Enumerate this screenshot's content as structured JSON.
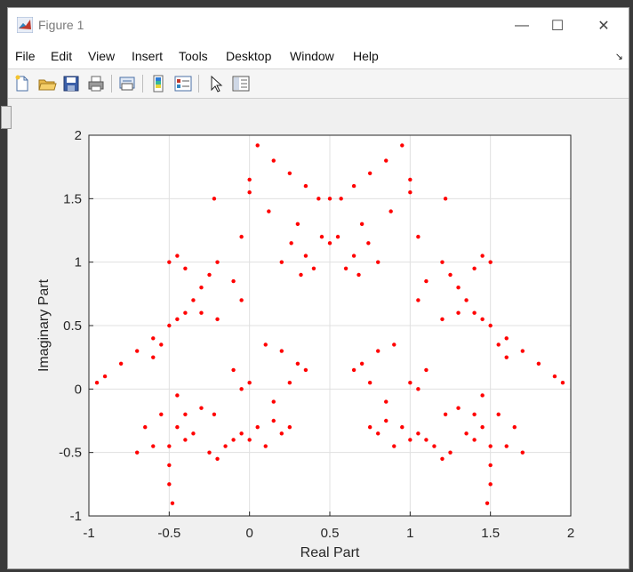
{
  "window": {
    "title": "Figure 1",
    "controls": {
      "minimize": "—",
      "maximize": "☐",
      "close": "✕"
    }
  },
  "menu": [
    "File",
    "Edit",
    "View",
    "Insert",
    "Tools",
    "Desktop",
    "Window",
    "Help"
  ],
  "toolbar": [
    "new-figure-icon",
    "open-file-icon",
    "save-icon",
    "print-icon",
    "link-plot-icon",
    "insert-colorbar-icon",
    "insert-legend-icon",
    "edit-plot-arrow-icon",
    "property-inspector-icon"
  ],
  "colors": {
    "points": "#ff0000",
    "grid": "#e0e0e0",
    "axes_bg": "#ffffff"
  },
  "chart_data": {
    "type": "scatter",
    "title": "",
    "xlabel": "Real Part",
    "ylabel": "Imaginary Part",
    "xlim": [
      -1,
      2
    ],
    "ylim": [
      -1,
      2
    ],
    "xticks": [
      -1,
      -0.5,
      0,
      0.5,
      1,
      1.5,
      2
    ],
    "yticks": [
      -1,
      -0.5,
      0,
      0.5,
      1,
      1.5,
      2
    ],
    "xtick_labels": [
      "-1",
      "-0.5",
      "0",
      "0.5",
      "1",
      "1.5",
      "2"
    ],
    "ytick_labels": [
      "-1",
      "-0.5",
      "0",
      "0.5",
      "1",
      "1.5",
      "2"
    ],
    "grid": true,
    "marker_color": "#ff0000",
    "series": [
      {
        "x": [
          0.5,
          0.43,
          0.57,
          0.35,
          0.65,
          0.25,
          0.75,
          0.15,
          0.85,
          0.05,
          0.95,
          0.0,
          1.0,
          -0.22,
          1.22,
          0.12,
          0.88,
          0.3,
          0.7,
          0.35,
          0.65,
          0.4,
          0.6,
          0.5,
          0.45,
          0.55,
          0.26,
          0.74,
          0.2,
          0.8,
          0.32,
          0.68,
          0.0,
          1.0,
          -0.05,
          1.05
        ],
        "y": [
          1.5,
          1.5,
          1.5,
          1.6,
          1.6,
          1.7,
          1.7,
          1.8,
          1.8,
          1.92,
          1.92,
          1.55,
          1.55,
          1.5,
          1.5,
          1.4,
          1.4,
          1.3,
          1.3,
          1.05,
          1.05,
          0.95,
          0.95,
          1.15,
          1.2,
          1.2,
          1.15,
          1.15,
          1.0,
          1.0,
          0.9,
          0.9,
          1.65,
          1.65,
          1.2,
          1.2
        ]
      },
      {
        "x": [
          -0.95,
          -0.9,
          -0.8,
          -0.7,
          -0.6,
          -0.5,
          -0.45,
          -0.4,
          -0.35,
          -0.3,
          -0.25,
          -0.2,
          -0.1,
          -0.05,
          -0.4,
          -0.45,
          -0.5,
          -0.3,
          -0.2,
          -0.6,
          -0.55,
          1.95,
          1.9,
          1.8,
          1.7,
          1.6,
          1.5,
          1.45,
          1.4,
          1.35,
          1.3,
          1.25,
          1.2,
          1.1,
          1.05,
          1.4,
          1.45,
          1.5,
          1.3,
          1.2,
          1.6,
          1.55
        ],
        "y": [
          0.05,
          0.1,
          0.2,
          0.3,
          0.4,
          0.5,
          0.55,
          0.6,
          0.7,
          0.8,
          0.9,
          1.0,
          0.85,
          0.7,
          0.95,
          1.05,
          1.0,
          0.6,
          0.55,
          0.25,
          0.35,
          0.05,
          0.1,
          0.2,
          0.3,
          0.4,
          0.5,
          0.55,
          0.6,
          0.7,
          0.8,
          0.9,
          1.0,
          0.85,
          0.7,
          0.95,
          1.05,
          1.0,
          0.6,
          0.55,
          0.25,
          0.35
        ]
      },
      {
        "x": [
          -0.7,
          -0.6,
          -0.5,
          -0.45,
          -0.4,
          -0.3,
          -0.22,
          -0.5,
          -0.5,
          -0.48,
          -0.55,
          -0.35,
          -0.65,
          -0.45,
          -0.4,
          1.7,
          1.6,
          1.5,
          1.45,
          1.4,
          1.3,
          1.22,
          1.5,
          1.5,
          1.48,
          1.55,
          1.35,
          1.65,
          1.45,
          1.4
        ],
        "y": [
          -0.5,
          -0.45,
          -0.45,
          -0.3,
          -0.2,
          -0.15,
          -0.2,
          -0.6,
          -0.75,
          -0.9,
          -0.2,
          -0.35,
          -0.3,
          -0.05,
          -0.4,
          -0.5,
          -0.45,
          -0.45,
          -0.3,
          -0.2,
          -0.15,
          -0.2,
          -0.6,
          -0.75,
          -0.9,
          -0.2,
          -0.35,
          -0.3,
          -0.05,
          -0.4
        ]
      },
      {
        "x": [
          -0.25,
          -0.15,
          -0.05,
          0.05,
          0.15,
          0.25,
          0.0,
          0.1,
          0.2,
          -0.1,
          -0.2,
          0.1,
          0.2,
          0.3,
          0.35,
          0.25,
          0.15,
          0.0,
          -0.05,
          -0.1,
          1.25,
          1.15,
          1.05,
          0.95,
          0.85,
          0.75,
          1.0,
          0.9,
          0.8,
          1.1,
          1.2,
          0.9,
          0.8,
          0.7,
          0.65,
          0.75,
          0.85,
          1.0,
          1.05,
          1.1
        ],
        "y": [
          -0.5,
          -0.45,
          -0.35,
          -0.3,
          -0.25,
          -0.3,
          -0.4,
          -0.45,
          -0.35,
          -0.4,
          -0.55,
          0.35,
          0.3,
          0.2,
          0.15,
          0.05,
          -0.1,
          0.05,
          0.0,
          0.15,
          -0.5,
          -0.45,
          -0.35,
          -0.3,
          -0.25,
          -0.3,
          -0.4,
          -0.45,
          -0.35,
          -0.4,
          -0.55,
          0.35,
          0.3,
          0.2,
          0.15,
          0.05,
          -0.1,
          0.05,
          0.0,
          0.15
        ]
      }
    ]
  }
}
